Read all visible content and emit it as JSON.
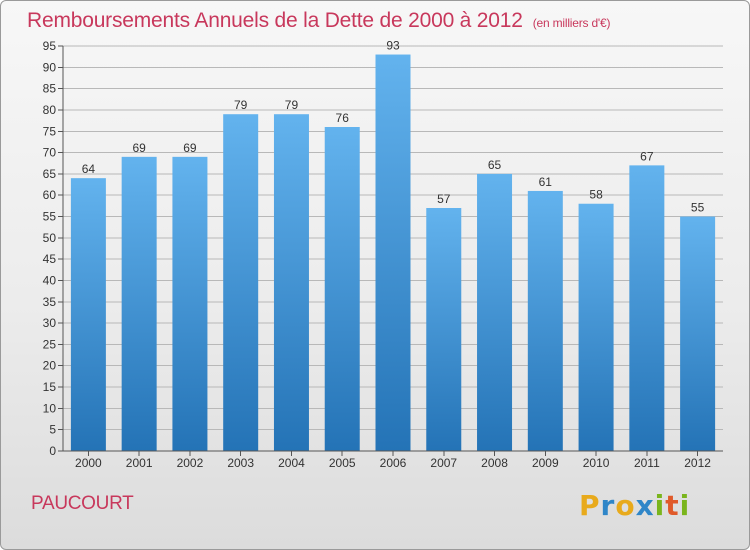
{
  "title": "Remboursements Annuels de la Dette de 2000 à 2012",
  "unit": "(en milliers d'€)",
  "commune": "PAUCOURT",
  "logo": {
    "letters": [
      "P",
      "r",
      "o",
      "x",
      "i",
      "t",
      "i"
    ],
    "colors": [
      "#e8aa1c",
      "#2f86c8",
      "#e8aa1c",
      "#2f86c8",
      "#7ab51d",
      "#e05a2a",
      "#7ab51d"
    ]
  },
  "colors": {
    "title": "#c8385c",
    "bar_top": "#63b3ee",
    "bar_bottom": "#2473b6",
    "grid": "#b8b8b8",
    "axis_text": "#333333"
  },
  "chart_data": {
    "type": "bar",
    "categories": [
      "2000",
      "2001",
      "2002",
      "2003",
      "2004",
      "2005",
      "2006",
      "2007",
      "2008",
      "2009",
      "2010",
      "2011",
      "2012"
    ],
    "values": [
      64,
      69,
      69,
      79,
      79,
      76,
      93,
      57,
      65,
      61,
      58,
      67,
      55
    ],
    "ylim": [
      0,
      95
    ],
    "yticks": [
      0,
      5,
      10,
      15,
      20,
      25,
      30,
      35,
      40,
      45,
      50,
      55,
      60,
      65,
      70,
      75,
      80,
      85,
      90,
      95
    ],
    "grid": true
  }
}
